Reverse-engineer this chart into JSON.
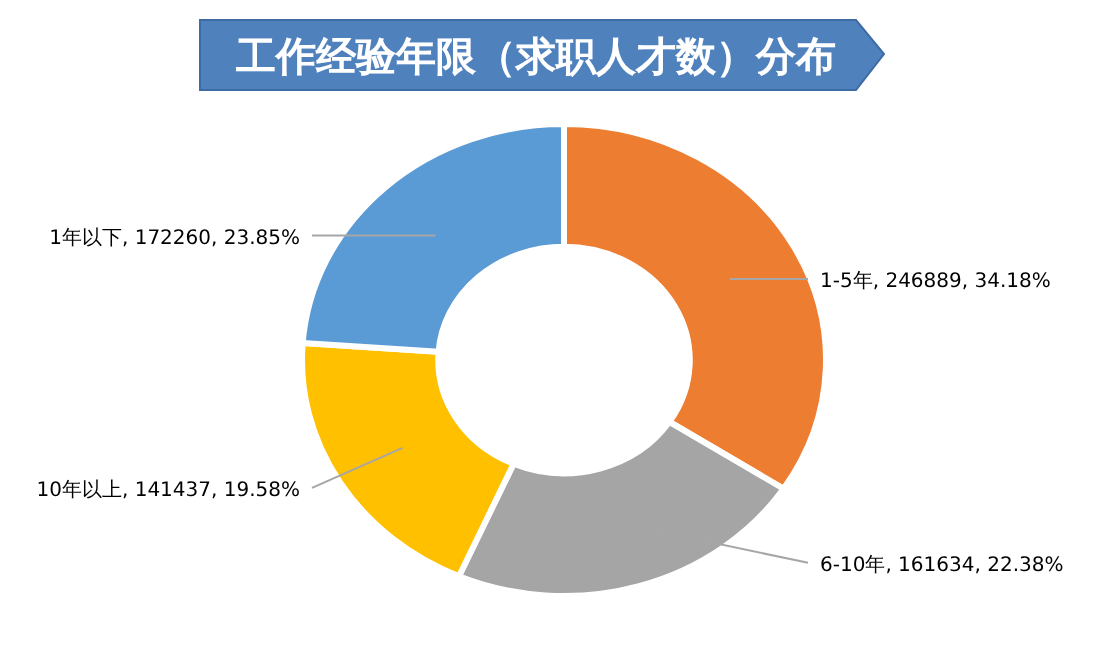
{
  "chart_data": {
    "type": "donut",
    "title": "工作经验年限（求职人才数）分布",
    "categories": [
      "1-5年",
      "6-10年",
      "10年以上",
      "1年以下"
    ],
    "values": [
      246889,
      161634,
      141437,
      172260
    ],
    "colors": [
      "#ed7d31",
      "#a5a5a5",
      "#ffc000",
      "#5b9bd5"
    ],
    "value_labels": [
      ", 246889, 34.18%",
      ", 161634, 22.38%",
      ", 141437, 19.58%",
      ", 172260, 23.85%"
    ]
  }
}
